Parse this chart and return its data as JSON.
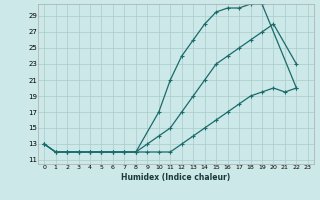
{
  "xlabel": "Humidex (Indice chaleur)",
  "bg_color": "#cce8e8",
  "grid_color": "#aacccc",
  "line_color": "#1a6b6b",
  "xlim": [
    -0.5,
    23.5
  ],
  "ylim": [
    10.5,
    30.5
  ],
  "xticks": [
    0,
    1,
    2,
    3,
    4,
    5,
    6,
    7,
    8,
    9,
    10,
    11,
    12,
    13,
    14,
    15,
    16,
    17,
    18,
    19,
    20,
    21,
    22,
    23
  ],
  "yticks": [
    11,
    13,
    15,
    17,
    19,
    21,
    23,
    25,
    27,
    29
  ],
  "curve1_x": [
    0,
    1,
    2,
    3,
    4,
    5,
    6,
    7,
    8,
    10,
    11,
    12,
    13,
    14,
    15,
    16,
    17,
    18,
    19,
    22
  ],
  "curve1_y": [
    13,
    12,
    12,
    12,
    12,
    12,
    12,
    12,
    12,
    17,
    21,
    24,
    26,
    28,
    29.5,
    30,
    30,
    30.5,
    30.5,
    20
  ],
  "curve2_x": [
    0,
    1,
    2,
    3,
    4,
    5,
    6,
    7,
    8,
    9,
    10,
    11,
    12,
    13,
    14,
    15,
    16,
    17,
    18,
    19,
    20,
    22
  ],
  "curve2_y": [
    13,
    12,
    12,
    12,
    12,
    12,
    12,
    12,
    12,
    13,
    14,
    15,
    17,
    19,
    21,
    23,
    24,
    25,
    26,
    27,
    28,
    23
  ],
  "curve3_x": [
    0,
    1,
    2,
    3,
    4,
    5,
    6,
    7,
    8,
    9,
    10,
    11,
    12,
    13,
    14,
    15,
    16,
    17,
    18,
    19,
    20,
    21,
    22
  ],
  "curve3_y": [
    13,
    12,
    12,
    12,
    12,
    12,
    12,
    12,
    12,
    12,
    12,
    12,
    13,
    14,
    15,
    16,
    17,
    18,
    19,
    19.5,
    20,
    19.5,
    20
  ]
}
